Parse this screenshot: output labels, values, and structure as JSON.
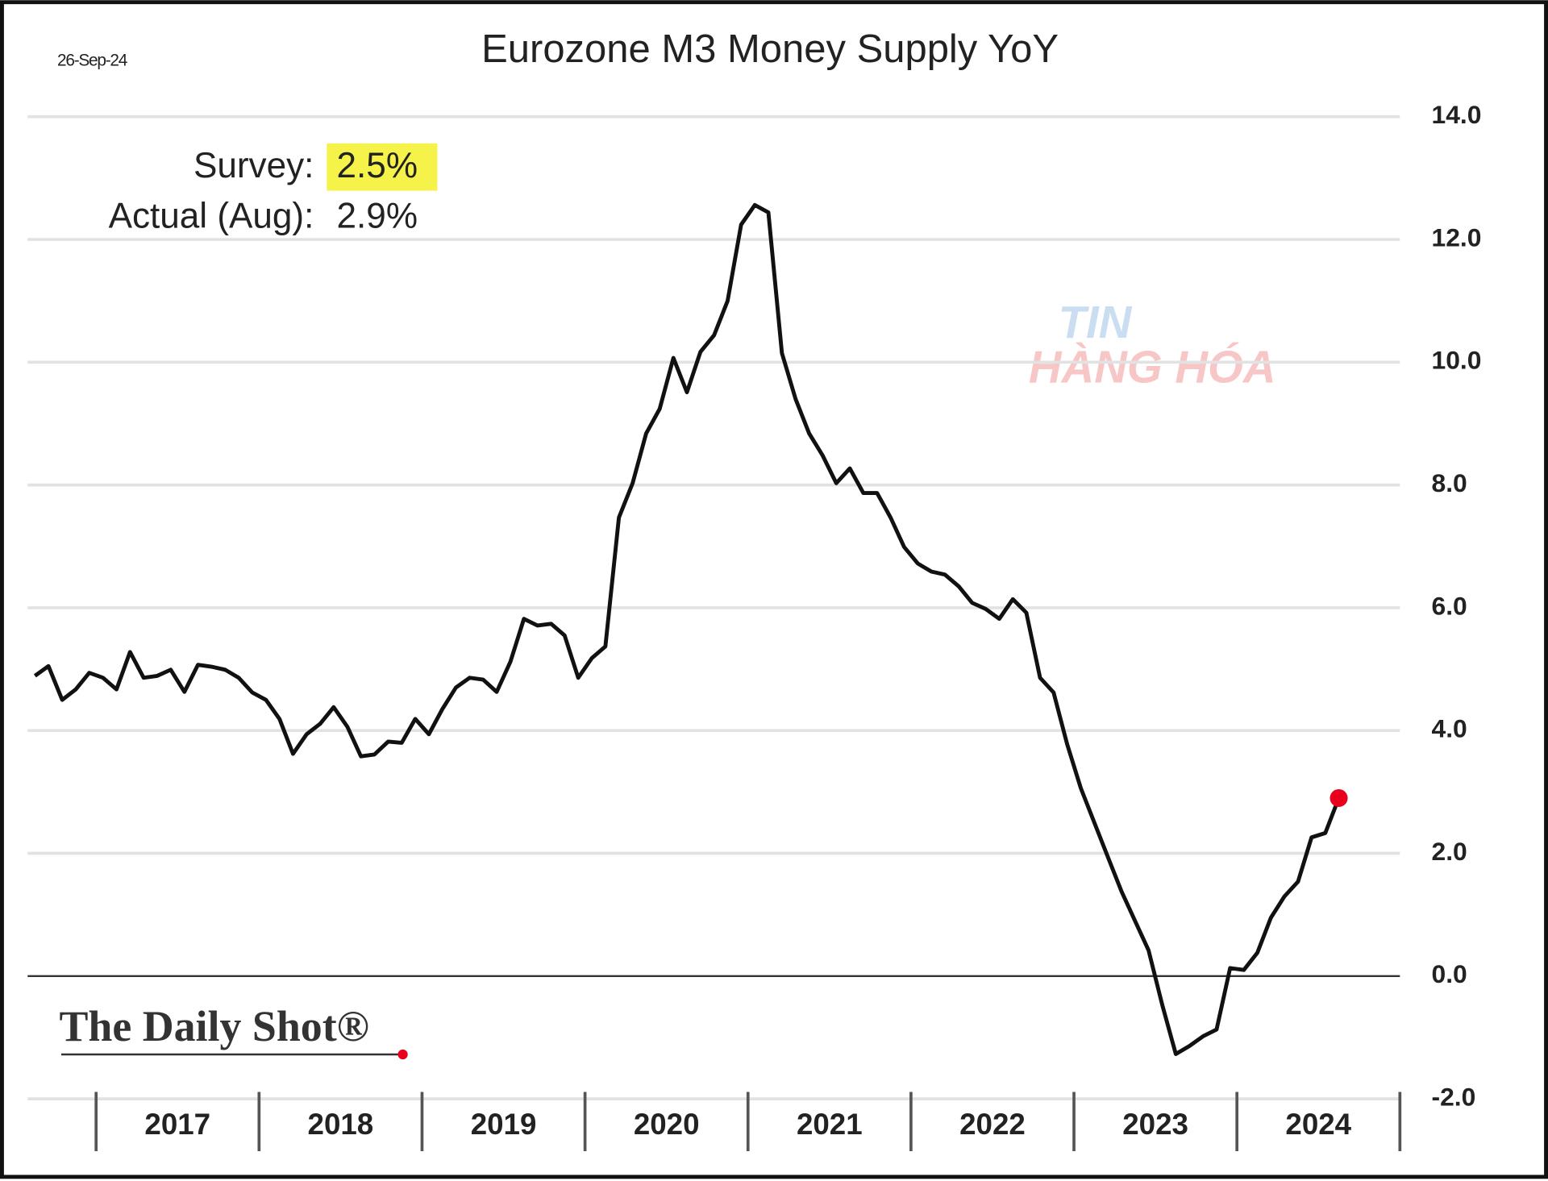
{
  "chart_data": {
    "type": "line",
    "title": "Eurozone M3 Money Supply YoY",
    "date_label": "26-Sep-24",
    "annotations": [
      {
        "label": "Survey:",
        "value": "2.5%"
      },
      {
        "label": "Actual (Aug):",
        "value": "2.9%"
      }
    ],
    "highlight_color": "#f5f24a",
    "source": "The Daily Shot®",
    "watermark": [
      "TIN",
      "HÀNG HÓA"
    ],
    "x": [
      2016.625,
      2016.708,
      2016.792,
      2016.875,
      2016.958,
      2017.042,
      2017.125,
      2017.208,
      2017.292,
      2017.375,
      2017.458,
      2017.542,
      2017.625,
      2017.708,
      2017.792,
      2017.875,
      2017.958,
      2018.042,
      2018.125,
      2018.208,
      2018.292,
      2018.375,
      2018.458,
      2018.542,
      2018.625,
      2018.708,
      2018.792,
      2018.875,
      2018.958,
      2019.042,
      2019.125,
      2019.208,
      2019.292,
      2019.375,
      2019.458,
      2019.542,
      2019.625,
      2019.708,
      2019.792,
      2019.875,
      2019.958,
      2020.042,
      2020.125,
      2020.208,
      2020.292,
      2020.375,
      2020.458,
      2020.542,
      2020.625,
      2020.708,
      2020.792,
      2020.875,
      2020.958,
      2021.042,
      2021.125,
      2021.208,
      2021.292,
      2021.375,
      2021.458,
      2021.542,
      2021.625,
      2021.708,
      2021.792,
      2021.875,
      2021.958,
      2022.042,
      2022.125,
      2022.208,
      2022.292,
      2022.375,
      2022.458,
      2022.542,
      2022.625,
      2022.708,
      2022.792,
      2022.875,
      2022.958,
      2023.042,
      2023.125,
      2023.208,
      2023.292,
      2023.375,
      2023.458,
      2023.542,
      2023.625,
      2023.708,
      2023.792,
      2023.875,
      2023.958,
      2024.042,
      2024.125,
      2024.208,
      2024.292,
      2024.375,
      2024.458,
      2024.542,
      2024.625
    ],
    "series": [
      {
        "name": "Eurozone M3 Money Supply YoY",
        "color": "#111111",
        "values": [
          4.89,
          5.05,
          4.5,
          4.67,
          4.94,
          4.86,
          4.67,
          5.28,
          4.86,
          4.89,
          4.99,
          4.63,
          5.07,
          5.04,
          4.99,
          4.86,
          4.62,
          4.5,
          4.19,
          3.62,
          3.94,
          4.11,
          4.38,
          4.06,
          3.58,
          3.61,
          3.82,
          3.8,
          4.19,
          3.94,
          4.35,
          4.7,
          4.86,
          4.83,
          4.63,
          5.12,
          5.82,
          5.71,
          5.74,
          5.55,
          4.86,
          5.18,
          5.37,
          7.47,
          8.03,
          8.84,
          9.24,
          10.07,
          9.51,
          10.17,
          10.44,
          11.0,
          12.24,
          12.56,
          12.44,
          10.15,
          9.4,
          8.84,
          8.48,
          8.03,
          8.27,
          7.87,
          7.87,
          7.47,
          6.99,
          6.72,
          6.59,
          6.54,
          6.35,
          6.08,
          5.98,
          5.82,
          6.14,
          5.92,
          4.86,
          4.62,
          3.78,
          3.06,
          2.5,
          1.94,
          1.38,
          0.9,
          0.42,
          -0.47,
          -1.27,
          -1.14,
          -0.98,
          -0.87,
          0.13,
          0.1,
          0.38,
          0.95,
          1.3,
          1.54,
          2.26,
          2.33,
          2.9
        ]
      }
    ],
    "end_marker_color": "#e8001c",
    "xlim": [
      2016.58,
      2025.0
    ],
    "xticks": [
      {
        "value": 2017.5,
        "label": "2017"
      },
      {
        "value": 2018.5,
        "label": "2018"
      },
      {
        "value": 2019.5,
        "label": "2019"
      },
      {
        "value": 2020.5,
        "label": "2020"
      },
      {
        "value": 2021.5,
        "label": "2021"
      },
      {
        "value": 2022.5,
        "label": "2022"
      },
      {
        "value": 2023.5,
        "label": "2023"
      },
      {
        "value": 2024.5,
        "label": "2024"
      }
    ],
    "ylim": [
      -2,
      14
    ],
    "yticks": [
      {
        "value": -2,
        "label": "-2.0"
      },
      {
        "value": 0,
        "label": "0.0"
      },
      {
        "value": 2,
        "label": "2.0"
      },
      {
        "value": 4,
        "label": "4.0"
      },
      {
        "value": 6,
        "label": "6.0"
      },
      {
        "value": 8,
        "label": "8.0"
      },
      {
        "value": 10,
        "label": "10.0"
      },
      {
        "value": 12,
        "label": "12.0"
      },
      {
        "value": 14,
        "label": "14.0"
      }
    ],
    "grid": true
  }
}
